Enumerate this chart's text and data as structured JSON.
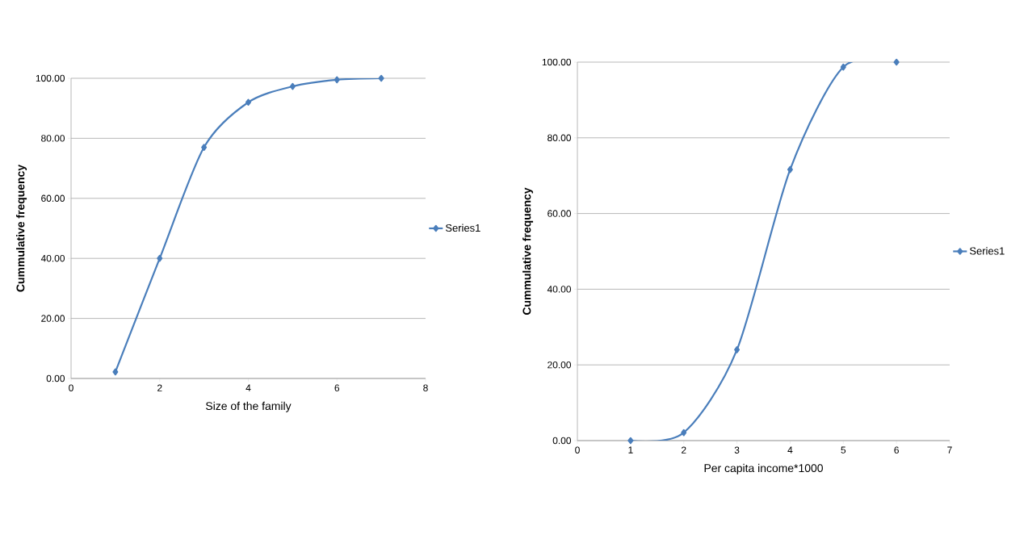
{
  "chart_data": [
    {
      "type": "line",
      "xlabel": "Size of the family",
      "ylabel": "Cummulative frequency",
      "x": [
        1,
        2,
        3,
        4,
        5,
        6,
        7
      ],
      "series": [
        {
          "name": "Series1",
          "color": "#4a7ebb",
          "values": [
            2.2,
            40,
            77,
            92,
            97.3,
            99.5,
            100
          ]
        }
      ],
      "xlim": [
        0,
        8
      ],
      "xticks": [
        0,
        2,
        4,
        6,
        8
      ],
      "ylim": [
        0,
        100
      ],
      "yticks": [
        {
          "value": 0,
          "label": "0.00"
        },
        {
          "value": 20,
          "label": "20.00"
        },
        {
          "value": 40,
          "label": "40.00"
        },
        {
          "value": 60,
          "label": "60.00"
        },
        {
          "value": 80,
          "label": "80.00"
        },
        {
          "value": 100,
          "label": "100.00"
        }
      ],
      "grid": "y",
      "legend": "right",
      "marker": "diamond",
      "line_style": "solid"
    },
    {
      "type": "line",
      "xlabel": "Per capita income*1000",
      "ylabel": "Cummulative frequency",
      "x": [
        1,
        2,
        3,
        4,
        5,
        6
      ],
      "series": [
        {
          "name": "Series1",
          "color": "#4a7ebb",
          "values": [
            0,
            2.1,
            24,
            71.6,
            98.7,
            100
          ]
        }
      ],
      "xlim": [
        0,
        7
      ],
      "xticks": [
        0,
        1,
        2,
        3,
        4,
        5,
        6,
        7
      ],
      "ylim": [
        0,
        100
      ],
      "yticks": [
        {
          "value": 0,
          "label": "0.00"
        },
        {
          "value": 20,
          "label": "20.00"
        },
        {
          "value": 40,
          "label": "40.00"
        },
        {
          "value": 60,
          "label": "60.00"
        },
        {
          "value": 80,
          "label": "80.00"
        },
        {
          "value": 100,
          "label": "100.00"
        }
      ],
      "grid": "y",
      "legend": "right",
      "marker": "diamond",
      "line_style": "solid"
    }
  ]
}
